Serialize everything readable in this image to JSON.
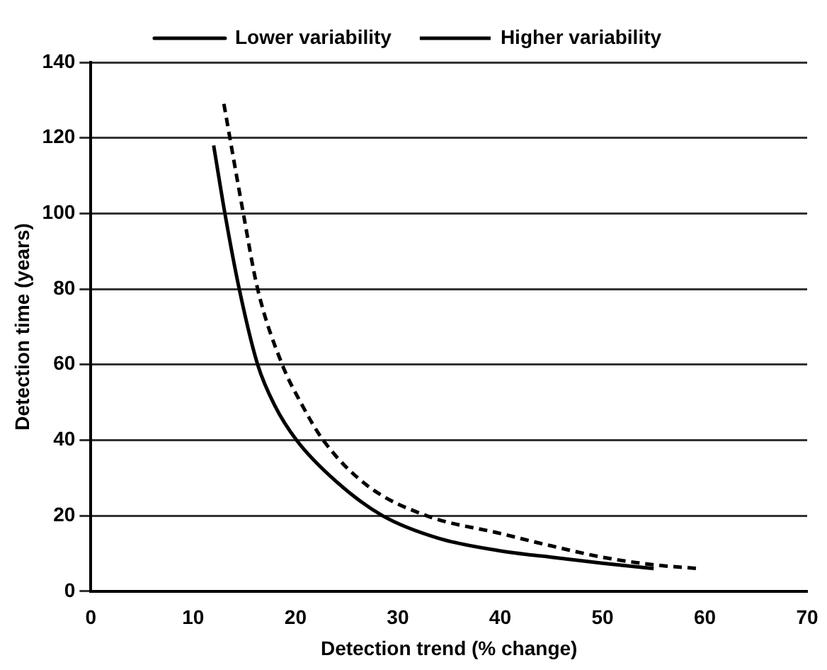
{
  "chart_data": {
    "type": "line",
    "xlabel": "Detection trend (% change)",
    "ylabel": "Detection time (years)",
    "xlim": [
      0,
      70
    ],
    "xticks": [
      0,
      10,
      20,
      30,
      40,
      50,
      60,
      70
    ],
    "ylim": [
      0,
      140
    ],
    "yticks": [
      0,
      20,
      40,
      60,
      80,
      100,
      120,
      140
    ],
    "grid": "y",
    "legend": "top",
    "marker": "none",
    "series": [
      {
        "name": "Lower variability",
        "color": "#000000",
        "line_style": "solid",
        "x": [
          12,
          13.1,
          14.5,
          16.3,
          18,
          20.1,
          24,
          28.5,
          34,
          40,
          45,
          50,
          55
        ],
        "values": [
          118,
          100,
          80,
          60,
          49,
          40,
          29,
          20,
          14,
          10.7,
          9,
          7.4,
          6
        ]
      },
      {
        "name": "Higher variability",
        "color": "#000000",
        "line_style": "dashed",
        "x": [
          13,
          14.9,
          16.3,
          18.7,
          20.5,
          22.7,
          27,
          32.8,
          40,
          45,
          50,
          55,
          59.4
        ],
        "values": [
          129,
          100,
          80,
          60,
          50,
          40,
          28,
          20,
          15.3,
          12,
          9,
          7,
          6
        ]
      }
    ]
  }
}
